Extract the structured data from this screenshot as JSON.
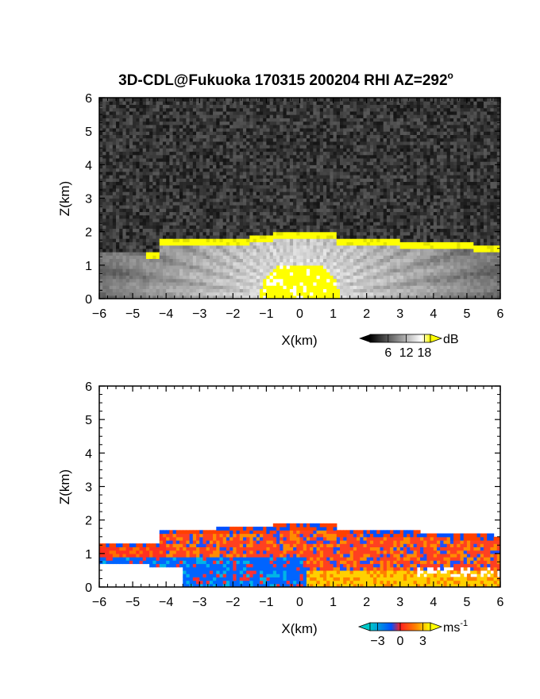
{
  "chart_data": [
    {
      "type": "heatmap",
      "title": "3D-CDL@Fukuoka 170315 200204 RHI AZ=292",
      "title_superscript": "o",
      "xlabel": "X(km)",
      "ylabel": "Z(km)",
      "xlim": [
        -6,
        6
      ],
      "ylim": [
        0,
        6
      ],
      "xticks": [
        "-6",
        "-5",
        "-4",
        "-3",
        "-2",
        "-1",
        "0",
        "1",
        "2",
        "3",
        "4",
        "5",
        "6"
      ],
      "yticks": [
        "0",
        "1",
        "2",
        "3",
        "4",
        "5",
        "6"
      ],
      "colorbar": {
        "unit": "dB",
        "ticks": [
          "6",
          "12",
          "18"
        ],
        "range": [
          0,
          20
        ],
        "colors": [
          "#000000",
          "#ffffff",
          "#ffff00"
        ]
      },
      "background": "noise"
    },
    {
      "type": "heatmap",
      "title": "",
      "xlabel": "X(km)",
      "ylabel": "Z(km)",
      "xlim": [
        -6,
        6
      ],
      "ylim": [
        0,
        6
      ],
      "xticks": [
        "-6",
        "-5",
        "-4",
        "-3",
        "-2",
        "-1",
        "0",
        "1",
        "2",
        "3",
        "4",
        "5",
        "6"
      ],
      "yticks": [
        "0",
        "1",
        "2",
        "3",
        "4",
        "5",
        "6"
      ],
      "colorbar": {
        "unit": "ms",
        "unit_superscript": "-1",
        "ticks": [
          "-3",
          "0",
          "3"
        ],
        "range": [
          -4,
          4
        ],
        "colors": [
          "#00c8c8",
          "#0050ff",
          "#ff2020",
          "#ff8000",
          "#ffff00"
        ]
      },
      "background": "white"
    }
  ]
}
